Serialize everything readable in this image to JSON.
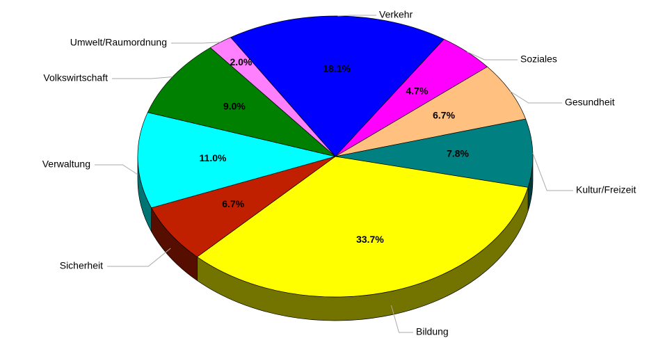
{
  "chart_data": {
    "type": "pie",
    "categories": [
      "Verkehr",
      "Soziales",
      "Gesundheit",
      "Kultur/Freizeit",
      "Bildung",
      "Sicherheit",
      "Verwaltung",
      "Volkswirtschaft",
      "Umwelt/Raumordnung"
    ],
    "values": [
      18.1,
      4.7,
      6.7,
      7.8,
      33.7,
      6.7,
      11.0,
      9.0,
      2.0
    ],
    "value_labels": [
      "18.1%",
      "4.7%",
      "6.7%",
      "7.8%",
      "33.7%",
      "6.7%",
      "11.0%",
      "9.0%",
      "2.0%"
    ],
    "colors": [
      "#0000ff",
      "#ff00ff",
      "#ffc080",
      "#008080",
      "#ffff00",
      "#c02000",
      "#00ffff",
      "#008000",
      "#ff80ff"
    ]
  }
}
